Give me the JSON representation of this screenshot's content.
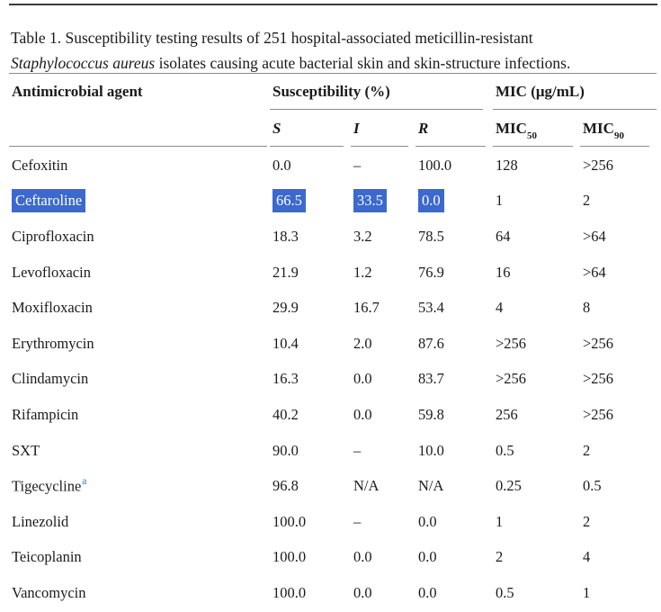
{
  "caption": {
    "label": "Table 1.",
    "line1": "Susceptibility testing results of 251 hospital-associated meticillin-resistant",
    "organism": "Staphylococcus aureus",
    "line2": "isolates causing acute bacterial skin and skin-structure infections."
  },
  "header": {
    "agent": "Antimicrobial agent",
    "susceptibility_group": "Susceptibility (%)",
    "mic_group": "MIC (μg/mL)",
    "s": "S",
    "i": "I",
    "r": "R",
    "mic50": {
      "base": "MIC",
      "sub": "50"
    },
    "mic90": {
      "base": "MIC",
      "sub": "90"
    }
  },
  "colors": {
    "selection_highlight": "#3b69ce",
    "selection_text": "#ffffff",
    "footnote_link": "#2d7db3",
    "rule_gray": "#8c8c8c",
    "top_rule": "#3a3a3a"
  },
  "table": {
    "rows": [
      {
        "agent": "Cefoxitin",
        "s": "0.0",
        "i": "–",
        "r": "100.0",
        "mic50": "128",
        "mic90": ">256"
      },
      {
        "agent": "Ceftaroline",
        "s": "66.5",
        "i": "33.5",
        "r": "0.0",
        "mic50": "1",
        "mic90": "2",
        "highlighted": true
      },
      {
        "agent": "Ciprofloxacin",
        "s": "18.3",
        "i": "3.2",
        "r": "78.5",
        "mic50": "64",
        "mic90": ">64"
      },
      {
        "agent": "Levofloxacin",
        "s": "21.9",
        "i": "1.2",
        "r": "76.9",
        "mic50": "16",
        "mic90": ">64"
      },
      {
        "agent": "Moxifloxacin",
        "s": "29.9",
        "i": "16.7",
        "r": "53.4",
        "mic50": "4",
        "mic90": "8"
      },
      {
        "agent": "Erythromycin",
        "s": "10.4",
        "i": "2.0",
        "r": "87.6",
        "mic50": ">256",
        "mic90": ">256"
      },
      {
        "agent": "Clindamycin",
        "s": "16.3",
        "i": "0.0",
        "r": "83.7",
        "mic50": ">256",
        "mic90": ">256"
      },
      {
        "agent": "Rifampicin",
        "s": "40.2",
        "i": "0.0",
        "r": "59.8",
        "mic50": "256",
        "mic90": ">256"
      },
      {
        "agent": "SXT",
        "s": "90.0",
        "i": "–",
        "r": "10.0",
        "mic50": "0.5",
        "mic90": "2"
      },
      {
        "agent": "Tigecycline",
        "footnote": "a",
        "s": "96.8",
        "i": "N/A",
        "r": "N/A",
        "mic50": "0.25",
        "mic90": "0.5"
      },
      {
        "agent": "Linezolid",
        "s": "100.0",
        "i": "–",
        "r": "0.0",
        "mic50": "1",
        "mic90": "2"
      },
      {
        "agent": "Teicoplanin",
        "s": "100.0",
        "i": "0.0",
        "r": "0.0",
        "mic50": "2",
        "mic90": "4"
      },
      {
        "agent": "Vancomycin",
        "s": "100.0",
        "i": "0.0",
        "r": "0.0",
        "mic50": "0.5",
        "mic90": "1"
      }
    ]
  }
}
